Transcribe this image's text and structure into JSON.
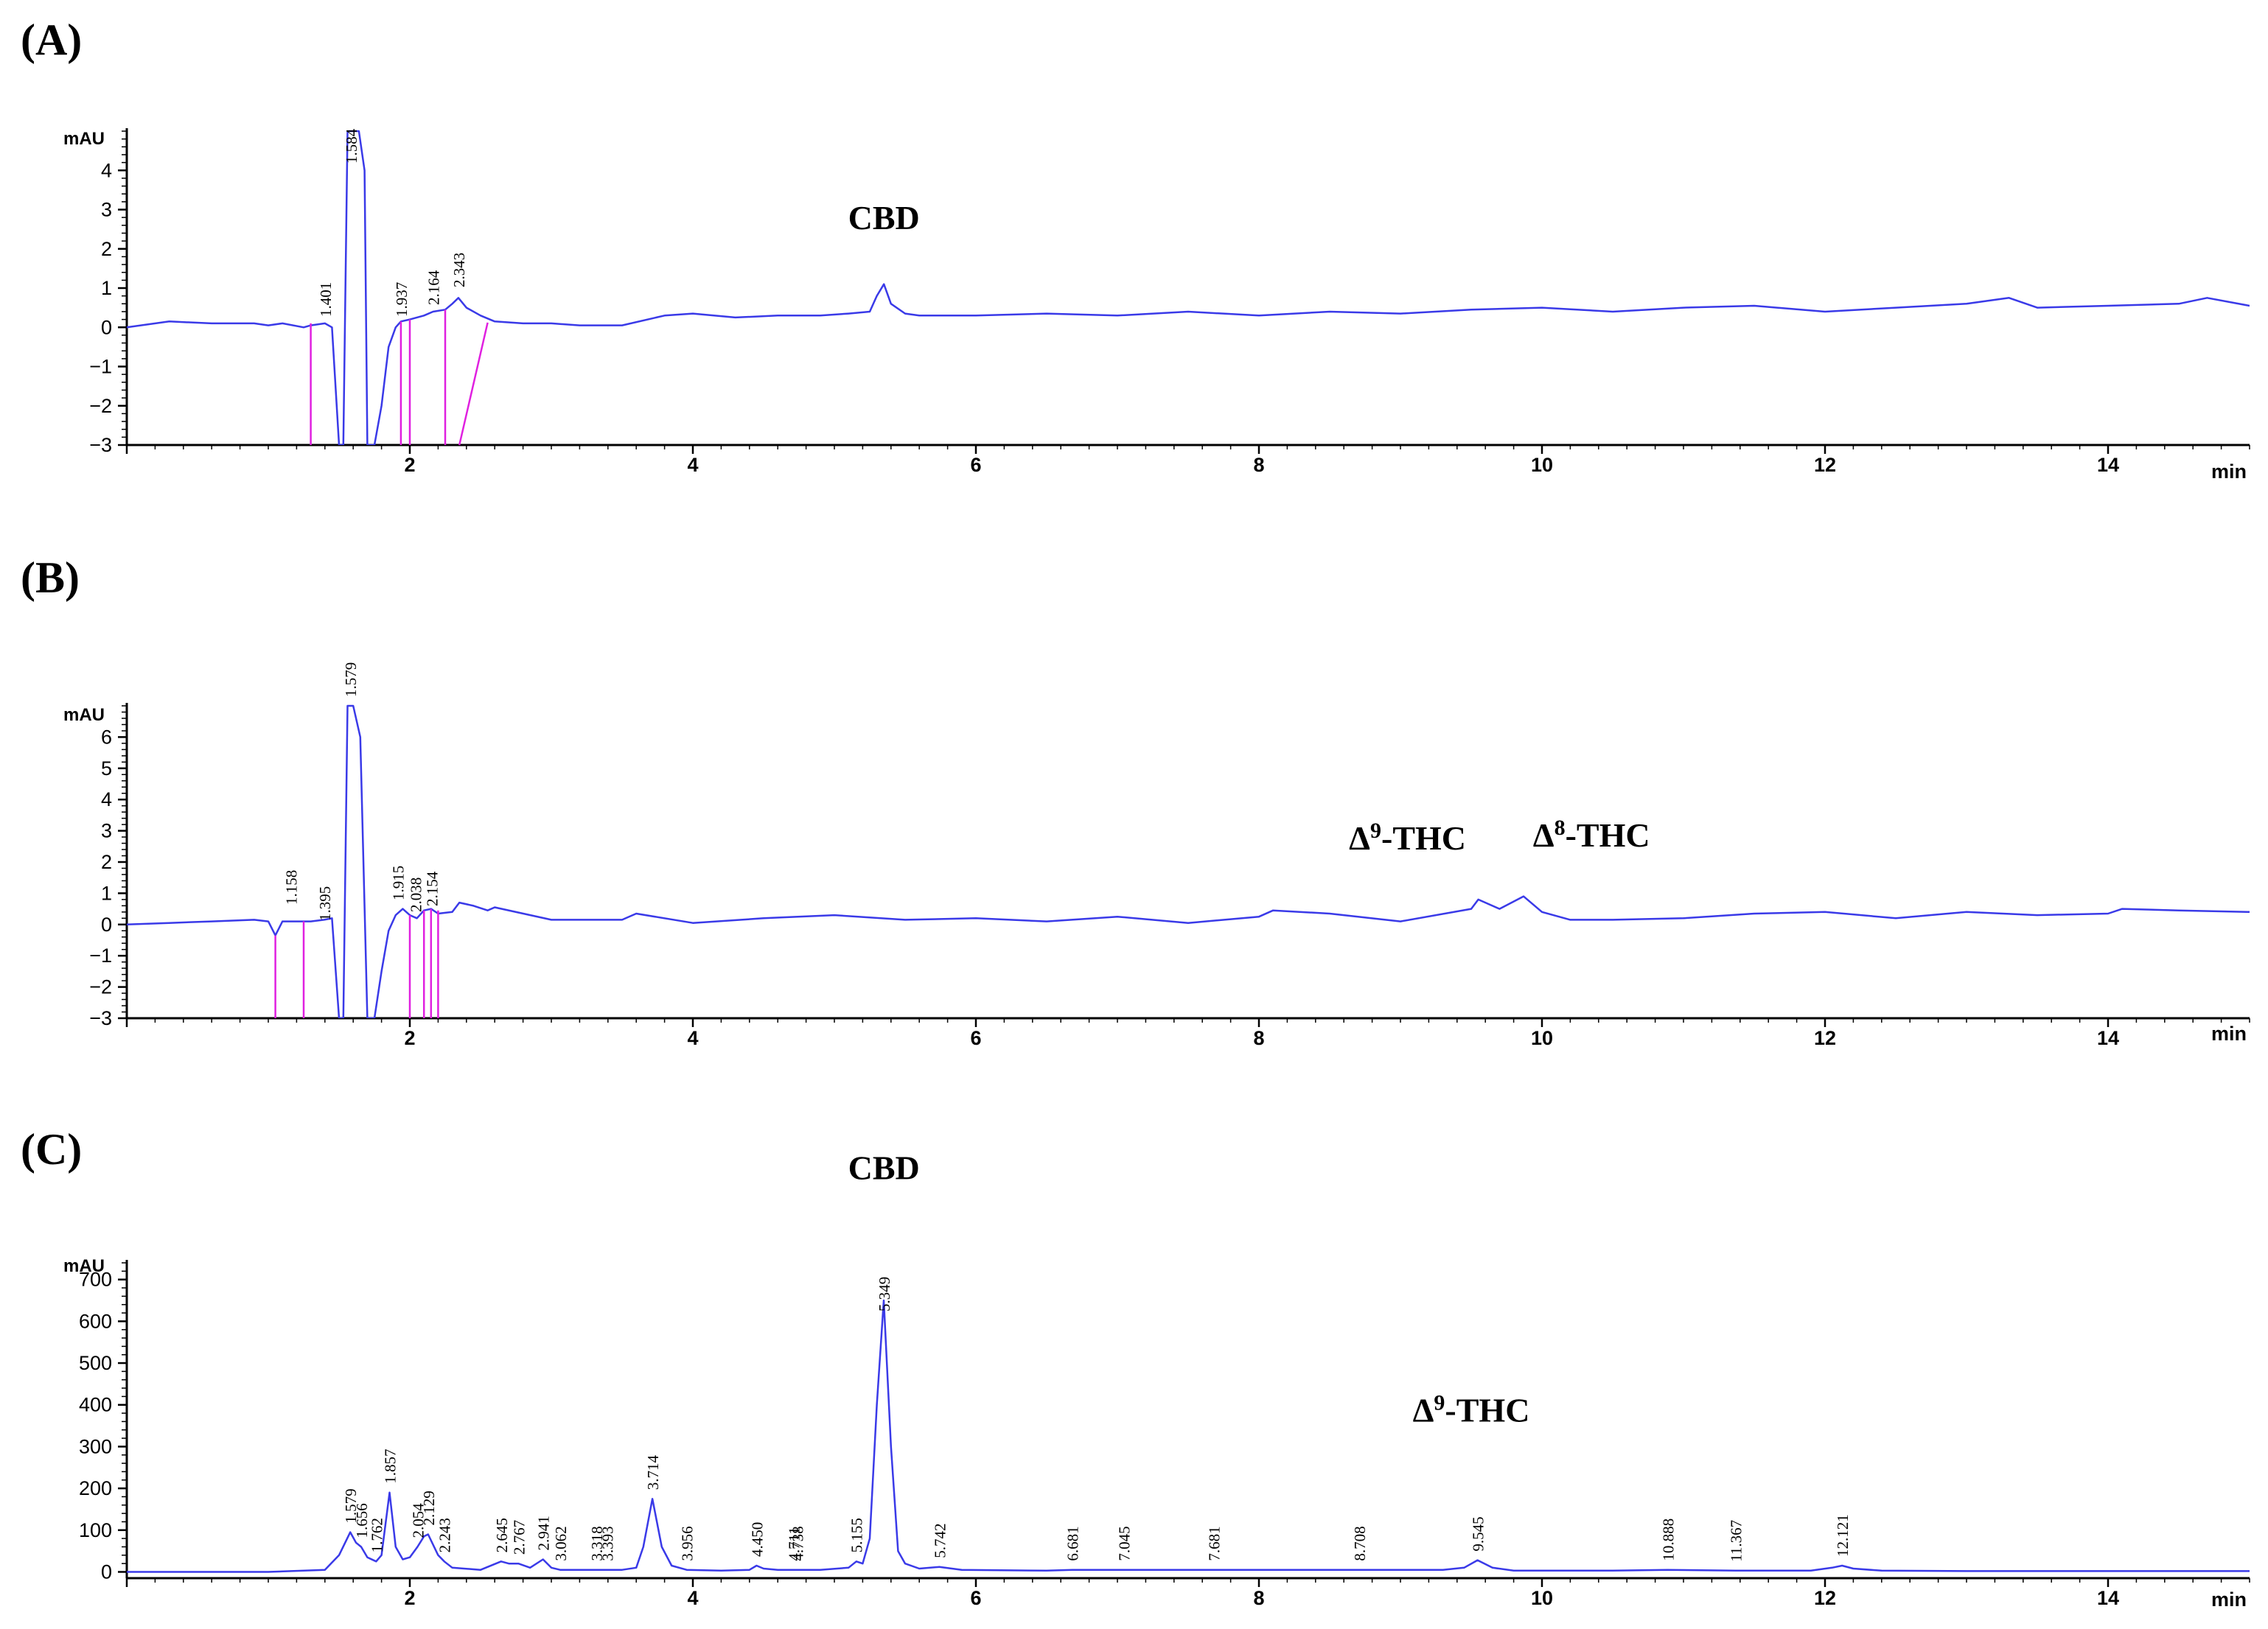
{
  "chart_data": [
    {
      "type": "line",
      "panel_label": "(A)",
      "y_unit": "mAU",
      "x_unit": "min",
      "xlim": [
        0,
        15
      ],
      "ylim": [
        -3,
        5
      ],
      "x_ticks": [
        "2",
        "4",
        "6",
        "8",
        "10",
        "12",
        "14"
      ],
      "y_ticks": [
        "-3",
        "-2",
        "-1",
        "0",
        "1",
        "2",
        "3",
        "4"
      ],
      "annotations": [
        {
          "text": "CBD",
          "x": 5.35,
          "y": 2.5
        }
      ],
      "peak_labels": [
        "1.401",
        "1.584",
        "1.937",
        "2.164",
        "2.343"
      ],
      "series": [
        {
          "x": [
            0,
            0.3,
            0.6,
            0.9,
            1.0,
            1.1,
            1.25,
            1.3,
            1.4,
            1.45,
            1.5,
            1.53,
            1.56,
            1.584,
            1.6,
            1.64,
            1.68,
            1.7,
            1.75,
            1.8,
            1.85,
            1.9,
            1.937,
            2.0,
            2.1,
            2.164,
            2.25,
            2.3,
            2.343,
            2.4,
            2.5,
            2.6,
            2.8,
            3.0,
            3.2,
            3.5,
            3.8,
            4.0,
            4.3,
            4.6,
            4.9,
            5.1,
            5.25,
            5.3,
            5.35,
            5.4,
            5.5,
            5.6,
            5.8,
            6.0,
            6.5,
            7.0,
            7.5,
            8.0,
            8.5,
            9.0,
            9.5,
            10.0,
            10.5,
            11.0,
            11.5,
            12.0,
            12.5,
            13.0,
            13.3,
            13.5,
            14.0,
            14.5,
            14.7,
            15.0
          ],
          "y": [
            0.0,
            0.15,
            0.1,
            0.1,
            0.05,
            0.1,
            0.0,
            0.05,
            0.1,
            0.0,
            -3,
            -3,
            5,
            5,
            5,
            5,
            4,
            -3,
            -3,
            -2,
            -0.5,
            0.0,
            0.15,
            0.2,
            0.3,
            0.4,
            0.45,
            0.6,
            0.75,
            0.5,
            0.3,
            0.15,
            0.1,
            0.1,
            0.05,
            0.05,
            0.3,
            0.35,
            0.25,
            0.3,
            0.3,
            0.35,
            0.4,
            0.8,
            1.1,
            0.6,
            0.35,
            0.3,
            0.3,
            0.3,
            0.35,
            0.3,
            0.4,
            0.3,
            0.4,
            0.35,
            0.45,
            0.5,
            0.4,
            0.5,
            0.55,
            0.4,
            0.5,
            0.6,
            0.75,
            0.5,
            0.55,
            0.6,
            0.75,
            0.55
          ]
        }
      ]
    },
    {
      "type": "line",
      "panel_label": "(B)",
      "y_unit": "mAU",
      "x_unit": "min",
      "xlim": [
        0,
        15
      ],
      "ylim": [
        -3,
        7
      ],
      "x_ticks": [
        "2",
        "4",
        "6",
        "8",
        "10",
        "12",
        "14"
      ],
      "y_ticks": [
        "-3",
        "-2",
        "-1",
        "0",
        "1",
        "2",
        "3",
        "4",
        "5",
        "6"
      ],
      "annotations": [
        {
          "text": "Δ",
          "sup": "9",
          "suffix": "-THC",
          "x": 9.05,
          "y": 2.4
        },
        {
          "text": "Δ",
          "sup": "8",
          "suffix": "-THC",
          "x": 10.35,
          "y": 2.5
        }
      ],
      "peak_labels": [
        "1.158",
        "1.395",
        "1.579",
        "1.915",
        "2.038",
        "2.154"
      ],
      "series": [
        {
          "x": [
            0,
            0.3,
            0.6,
            0.9,
            1.0,
            1.05,
            1.1,
            1.158,
            1.3,
            1.395,
            1.45,
            1.5,
            1.53,
            1.56,
            1.579,
            1.6,
            1.65,
            1.7,
            1.75,
            1.8,
            1.85,
            1.9,
            1.95,
            2.0,
            2.05,
            2.1,
            2.15,
            2.2,
            2.3,
            2.35,
            2.45,
            2.55,
            2.6,
            3.0,
            3.5,
            3.6,
            4.0,
            4.5,
            5.0,
            5.5,
            6.0,
            6.5,
            7.0,
            7.5,
            8.0,
            8.1,
            8.5,
            9.0,
            9.5,
            9.55,
            9.7,
            9.87,
            10.0,
            10.2,
            10.5,
            11.0,
            11.5,
            12.0,
            12.5,
            13.0,
            13.5,
            14.0,
            14.1,
            14.5,
            15.0
          ],
          "y": [
            0.0,
            0.05,
            0.1,
            0.15,
            0.1,
            -0.35,
            0.1,
            0.1,
            0.1,
            0.15,
            0.2,
            -3,
            -3,
            7,
            7,
            7,
            6,
            -3,
            -3,
            -1.5,
            -0.2,
            0.3,
            0.5,
            0.3,
            0.2,
            0.45,
            0.5,
            0.35,
            0.4,
            0.7,
            0.6,
            0.45,
            0.55,
            0.15,
            0.15,
            0.35,
            0.05,
            0.2,
            0.3,
            0.15,
            0.2,
            0.1,
            0.25,
            0.05,
            0.25,
            0.45,
            0.35,
            0.1,
            0.5,
            0.8,
            0.5,
            0.9,
            0.4,
            0.15,
            0.15,
            0.2,
            0.35,
            0.4,
            0.2,
            0.4,
            0.3,
            0.35,
            0.5,
            0.45,
            0.4
          ]
        }
      ]
    },
    {
      "type": "line",
      "panel_label": "(C)",
      "y_unit": "mAU",
      "x_unit": "min",
      "xlim": [
        0,
        15
      ],
      "ylim": [
        -15,
        740
      ],
      "x_ticks": [
        "2",
        "4",
        "6",
        "8",
        "10",
        "12",
        "14"
      ],
      "y_ticks": [
        "0",
        "100",
        "200",
        "300",
        "400",
        "500",
        "600",
        "700"
      ],
      "annotations": [
        {
          "text": "CBD",
          "x": 5.35,
          "y": 940
        },
        {
          "text": "Δ",
          "sup": "9",
          "suffix": "-THC",
          "x": 9.5,
          "y": 360
        }
      ],
      "peak_labels": [
        "1.579",
        "1.656",
        "1.762",
        "1.857",
        "2.054",
        "2.129",
        "2.243",
        "2.645",
        "2.767",
        "2.941",
        "3.062",
        "3.318",
        "3.393",
        "3.714",
        "3.956",
        "4.450",
        "4.711",
        "4.738",
        "5.155",
        "5.349",
        "5.742",
        "6.681",
        "7.045",
        "7.681",
        "8.708",
        "9.545",
        "10.888",
        "11.367",
        "12.121"
      ],
      "series": [
        {
          "x": [
            0,
            1.0,
            1.4,
            1.5,
            1.579,
            1.62,
            1.656,
            1.7,
            1.762,
            1.8,
            1.857,
            1.9,
            1.95,
            2.0,
            2.054,
            2.1,
            2.129,
            2.2,
            2.243,
            2.3,
            2.5,
            2.645,
            2.7,
            2.767,
            2.85,
            2.941,
            3.0,
            3.062,
            3.2,
            3.318,
            3.393,
            3.5,
            3.6,
            3.65,
            3.714,
            3.78,
            3.85,
            3.956,
            4.2,
            4.4,
            4.45,
            4.5,
            4.6,
            4.711,
            4.738,
            4.9,
            5.1,
            5.155,
            5.2,
            5.25,
            5.3,
            5.349,
            5.4,
            5.45,
            5.5,
            5.6,
            5.742,
            5.9,
            6.5,
            6.681,
            7.045,
            7.681,
            8.708,
            9.3,
            9.45,
            9.545,
            9.65,
            9.8,
            10.5,
            10.888,
            11.367,
            11.9,
            12.05,
            12.121,
            12.2,
            12.4,
            13,
            14,
            15
          ],
          "y": [
            0,
            0,
            5,
            40,
            95,
            70,
            60,
            35,
            25,
            40,
            190,
            60,
            30,
            35,
            60,
            85,
            90,
            40,
            25,
            10,
            5,
            25,
            20,
            20,
            10,
            30,
            10,
            5,
            5,
            5,
            5,
            5,
            10,
            60,
            175,
            60,
            15,
            5,
            3,
            5,
            15,
            8,
            5,
            5,
            5,
            5,
            10,
            25,
            20,
            80,
            400,
            650,
            300,
            50,
            20,
            8,
            12,
            5,
            3,
            5,
            5,
            5,
            5,
            5,
            10,
            28,
            10,
            3,
            3,
            5,
            3,
            3,
            10,
            15,
            8,
            3,
            2,
            2,
            2
          ]
        }
      ]
    }
  ]
}
